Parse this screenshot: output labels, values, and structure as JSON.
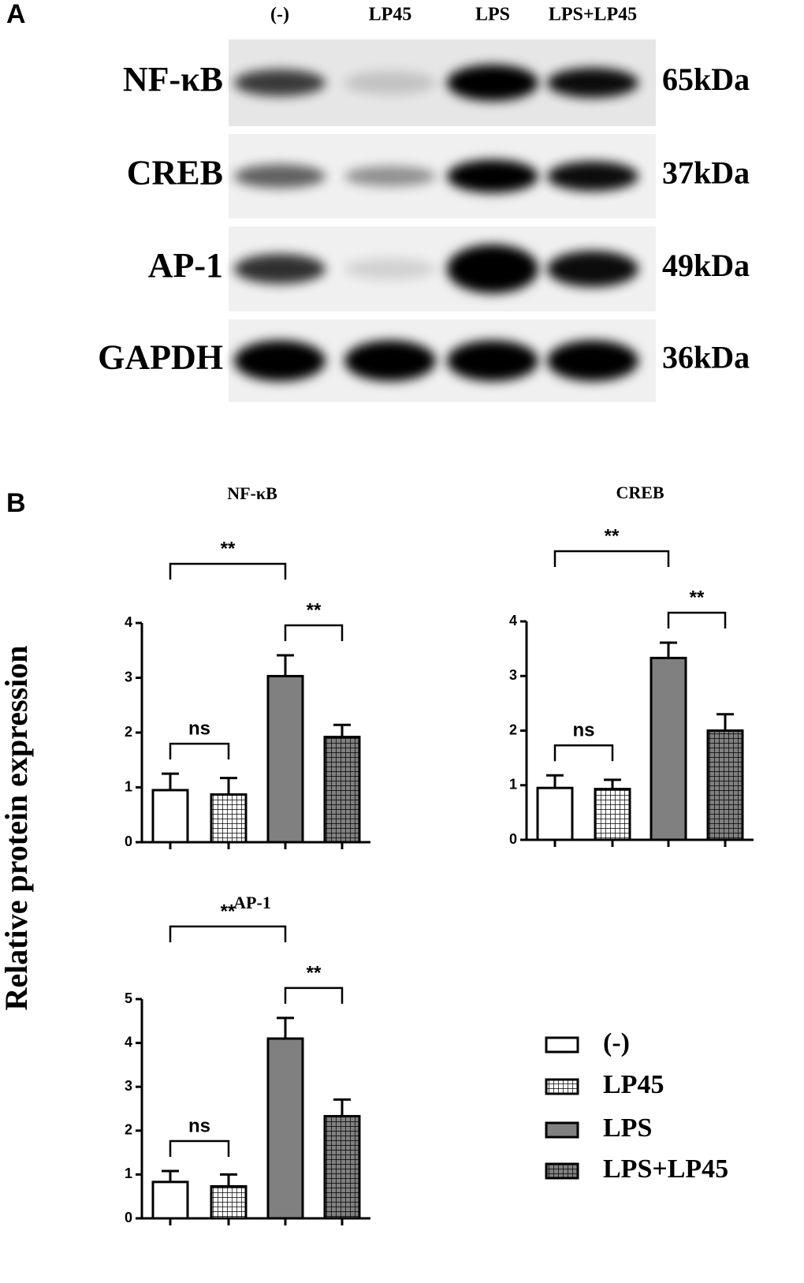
{
  "panel_a": {
    "label": "A",
    "lanes": [
      "(-)",
      "LP45",
      "LPS",
      "LPS+LP45"
    ],
    "blots": [
      {
        "protein": "NF-κB",
        "size": "65kDa"
      },
      {
        "protein": "CREB",
        "size": "37kDa"
      },
      {
        "protein": "AP-1",
        "size": "49kDa"
      },
      {
        "protein": "GAPDH",
        "size": "36kDa"
      }
    ]
  },
  "panel_b": {
    "label": "B",
    "y_label": "Relative protein expression",
    "legend": [
      {
        "name": "(-)",
        "color": "#ffffff",
        "hatch": "none"
      },
      {
        "name": "LP45",
        "color": "#ffffff",
        "hatch": "grid"
      },
      {
        "name": "LPS",
        "color": "#808080",
        "hatch": "none"
      },
      {
        "name": "LPS+LP45",
        "color": "#808080",
        "hatch": "grid"
      }
    ]
  },
  "chart_data": [
    {
      "type": "bar",
      "title": "NF-κB",
      "categories": [
        null,
        null,
        null,
        null
      ],
      "values": [
        0.95,
        0.87,
        3.03,
        1.92
      ],
      "errors": [
        0.3,
        0.3,
        0.38,
        0.22
      ],
      "ylim": [
        0,
        4
      ],
      "yticks": [
        0,
        1,
        2,
        3,
        4
      ],
      "annotations": [
        {
          "from": 0,
          "to": 1,
          "text": "ns"
        },
        {
          "from": 2,
          "to": 3,
          "text": "**"
        },
        {
          "from": 0,
          "to": 2,
          "text": "**"
        }
      ]
    },
    {
      "type": "bar",
      "title": "CREB",
      "categories": [
        null,
        null,
        null,
        null
      ],
      "values": [
        0.95,
        0.93,
        3.33,
        2.0
      ],
      "errors": [
        0.23,
        0.17,
        0.28,
        0.3
      ],
      "ylim": [
        0,
        4
      ],
      "yticks": [
        0,
        1,
        2,
        3,
        4
      ],
      "annotations": [
        {
          "from": 0,
          "to": 1,
          "text": "ns"
        },
        {
          "from": 2,
          "to": 3,
          "text": "**"
        },
        {
          "from": 0,
          "to": 2,
          "text": "**"
        }
      ]
    },
    {
      "type": "bar",
      "title": "AP-1",
      "categories": [
        null,
        null,
        null,
        null
      ],
      "values": [
        0.83,
        0.73,
        4.1,
        2.33
      ],
      "errors": [
        0.25,
        0.27,
        0.47,
        0.38
      ],
      "ylim": [
        0,
        5
      ],
      "yticks": [
        0,
        1,
        2,
        3,
        4,
        5
      ],
      "annotations": [
        {
          "from": 0,
          "to": 1,
          "text": "ns"
        },
        {
          "from": 2,
          "to": 3,
          "text": "**"
        },
        {
          "from": 0,
          "to": 2,
          "text": "**"
        }
      ]
    }
  ]
}
